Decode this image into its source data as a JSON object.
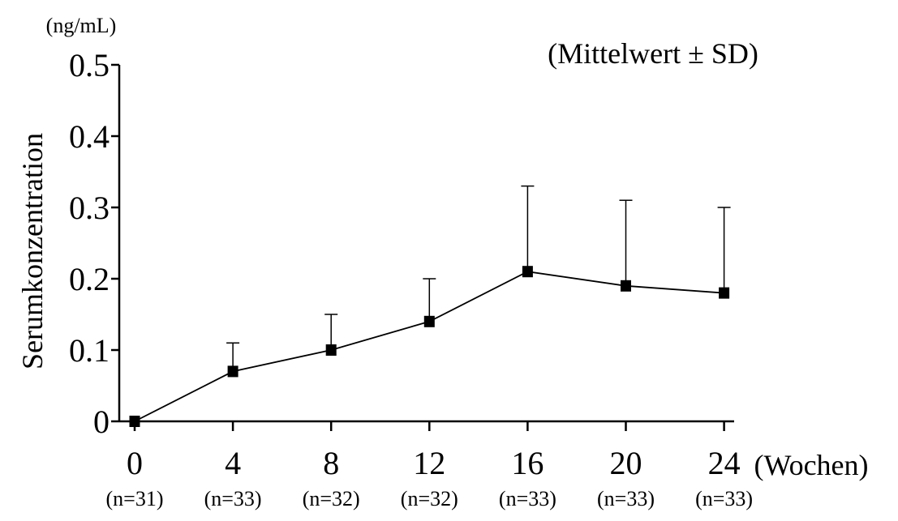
{
  "chart_data": {
    "type": "line",
    "unit_label": "(ng/mL)",
    "annotation": "(Mittelwert ± SD)",
    "ylabel": "Serumkonzentration",
    "xlabel": "(Wochen)",
    "ylim": [
      0,
      0.5
    ],
    "y_ticks": [
      "0",
      "0.1",
      "0.2",
      "0.3",
      "0.4",
      "0.5"
    ],
    "x": [
      "0",
      "4",
      "8",
      "12",
      "16",
      "20",
      "24"
    ],
    "n_labels": [
      "(n=31)",
      "(n=33)",
      "(n=32)",
      "(n=32)",
      "(n=33)",
      "(n=33)",
      "(n=33)"
    ],
    "series": [
      {
        "values": [
          0.0,
          0.07,
          0.1,
          0.14,
          0.21,
          0.19,
          0.18
        ],
        "sd": [
          0.0,
          0.04,
          0.05,
          0.06,
          0.12,
          0.12,
          0.12
        ]
      }
    ],
    "grid": false,
    "colors": {
      "line": "#000000",
      "marker": "#000000"
    }
  }
}
